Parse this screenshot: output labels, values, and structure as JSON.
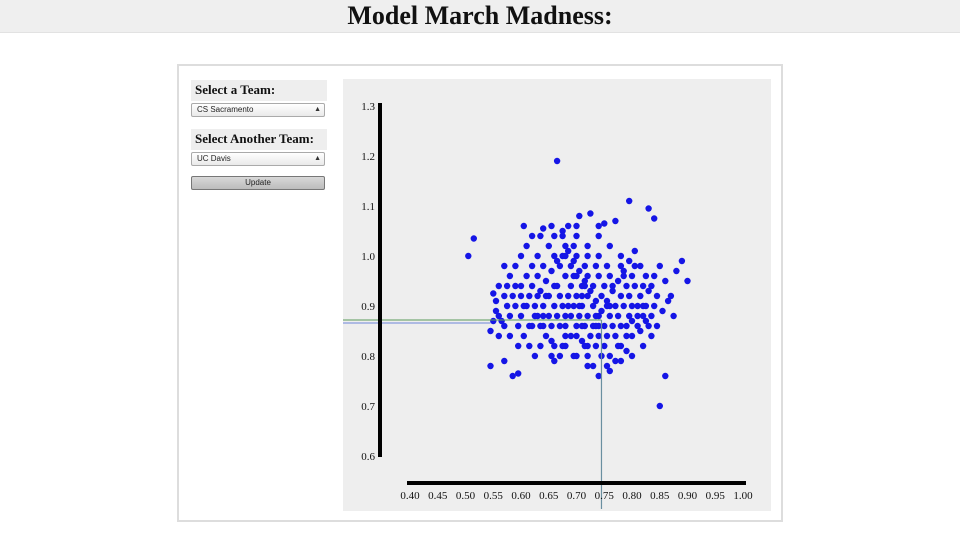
{
  "page": {
    "title": "Model March Madness:"
  },
  "controls": {
    "team1_label": "Select a Team:",
    "team1_value": "CS Sacramento",
    "team2_label": "Select Another Team:",
    "team2_value": "UC Davis",
    "update_label": "Update"
  },
  "colors": {
    "points": "#1515e6",
    "vline": "#6a8fa0",
    "hline_blue": "#6f86d8",
    "hline_green": "#5a9a5a",
    "axis": "#000000"
  },
  "chart_data": {
    "type": "scatter",
    "title": "",
    "xlabel": "",
    "ylabel": "",
    "xlim": [
      0.4,
      1.0
    ],
    "ylim": [
      0.6,
      1.3
    ],
    "x_ticks": [
      "0.40",
      "0.45",
      "0.50",
      "0.55",
      "0.60",
      "0.65",
      "0.70",
      "0.75",
      "0.80",
      "0.85",
      "0.90",
      "0.95",
      "1.00"
    ],
    "y_ticks": [
      "1.3",
      "1.2",
      "1.1",
      "1.0",
      "0.9",
      "0.8",
      "0.7",
      "0.6"
    ],
    "grid": false,
    "reference_lines": {
      "x": 0.745,
      "y_green": 0.872,
      "y_blue": 0.866
    },
    "points": [
      [
        0.665,
        1.19
      ],
      [
        0.505,
        1.0
      ],
      [
        0.515,
        1.035
      ],
      [
        0.55,
        0.925
      ],
      [
        0.555,
        0.91
      ],
      [
        0.56,
        0.88
      ],
      [
        0.565,
        0.87
      ],
      [
        0.545,
        0.78
      ],
      [
        0.57,
        0.79
      ],
      [
        0.585,
        0.76
      ],
      [
        0.595,
        0.765
      ],
      [
        0.63,
        0.88
      ],
      [
        0.64,
        0.86
      ],
      [
        0.655,
        0.83
      ],
      [
        0.66,
        0.79
      ],
      [
        0.67,
        0.8
      ],
      [
        0.68,
        0.82
      ],
      [
        0.69,
        0.84
      ],
      [
        0.7,
        0.86
      ],
      [
        0.71,
        0.83
      ],
      [
        0.72,
        0.8
      ],
      [
        0.73,
        0.78
      ],
      [
        0.74,
        0.76
      ],
      [
        0.76,
        0.77
      ],
      [
        0.77,
        0.79
      ],
      [
        0.78,
        0.82
      ],
      [
        0.79,
        0.84
      ],
      [
        0.8,
        0.87
      ],
      [
        0.81,
        0.88
      ],
      [
        0.82,
        0.9
      ],
      [
        0.83,
        0.93
      ],
      [
        0.84,
        0.96
      ],
      [
        0.85,
        0.98
      ],
      [
        0.86,
        0.95
      ],
      [
        0.87,
        0.92
      ],
      [
        0.88,
        0.97
      ],
      [
        0.89,
        0.99
      ],
      [
        0.9,
        0.95
      ],
      [
        0.86,
        0.76
      ],
      [
        0.85,
        0.7
      ],
      [
        0.795,
        1.11
      ],
      [
        0.83,
        1.095
      ],
      [
        0.84,
        1.075
      ],
      [
        0.77,
        1.07
      ],
      [
        0.75,
        1.065
      ],
      [
        0.725,
        1.085
      ],
      [
        0.705,
        1.08
      ],
      [
        0.685,
        1.06
      ],
      [
        0.675,
        1.05
      ],
      [
        0.64,
        1.055
      ],
      [
        0.62,
        1.04
      ],
      [
        0.61,
        1.02
      ],
      [
        0.6,
        1.0
      ],
      [
        0.59,
        0.98
      ],
      [
        0.58,
        0.96
      ],
      [
        0.575,
        0.94
      ],
      [
        0.6,
        0.94
      ],
      [
        0.615,
        0.92
      ],
      [
        0.625,
        0.9
      ],
      [
        0.635,
        0.93
      ],
      [
        0.645,
        0.95
      ],
      [
        0.655,
        0.97
      ],
      [
        0.665,
        0.99
      ],
      [
        0.675,
        1.0
      ],
      [
        0.685,
        1.01
      ],
      [
        0.695,
        0.99
      ],
      [
        0.705,
        0.97
      ],
      [
        0.715,
        0.95
      ],
      [
        0.725,
        0.93
      ],
      [
        0.735,
        0.91
      ],
      [
        0.745,
        0.89
      ],
      [
        0.755,
        0.91
      ],
      [
        0.765,
        0.93
      ],
      [
        0.775,
        0.95
      ],
      [
        0.785,
        0.97
      ],
      [
        0.795,
        0.99
      ],
      [
        0.805,
        1.01
      ],
      [
        0.815,
        0.98
      ],
      [
        0.825,
        0.96
      ],
      [
        0.835,
        0.94
      ],
      [
        0.845,
        0.92
      ],
      [
        0.82,
        0.88
      ],
      [
        0.81,
        0.86
      ],
      [
        0.8,
        0.84
      ],
      [
        0.79,
        0.81
      ],
      [
        0.78,
        0.79
      ],
      [
        0.76,
        0.8
      ],
      [
        0.75,
        0.82
      ],
      [
        0.74,
        0.84
      ],
      [
        0.73,
        0.86
      ],
      [
        0.72,
        0.88
      ],
      [
        0.71,
        0.9
      ],
      [
        0.7,
        0.92
      ],
      [
        0.69,
        0.94
      ],
      [
        0.68,
        0.96
      ],
      [
        0.67,
        0.98
      ],
      [
        0.66,
        1.0
      ],
      [
        0.65,
        1.02
      ],
      [
        0.63,
        1.0
      ],
      [
        0.62,
        0.98
      ],
      [
        0.61,
        0.96
      ],
      [
        0.6,
        0.92
      ],
      [
        0.59,
        0.9
      ],
      [
        0.58,
        0.88
      ],
      [
        0.57,
        0.86
      ],
      [
        0.575,
        0.9
      ],
      [
        0.585,
        0.92
      ],
      [
        0.595,
        0.86
      ],
      [
        0.605,
        0.84
      ],
      [
        0.615,
        0.82
      ],
      [
        0.625,
        0.8
      ],
      [
        0.635,
        0.82
      ],
      [
        0.645,
        0.84
      ],
      [
        0.655,
        0.86
      ],
      [
        0.665,
        0.88
      ],
      [
        0.675,
        0.9
      ],
      [
        0.685,
        0.92
      ],
      [
        0.695,
        0.9
      ],
      [
        0.705,
        0.88
      ],
      [
        0.715,
        0.86
      ],
      [
        0.725,
        0.84
      ],
      [
        0.735,
        0.82
      ],
      [
        0.745,
        0.8
      ],
      [
        0.755,
        0.78
      ],
      [
        0.765,
        0.86
      ],
      [
        0.775,
        0.88
      ],
      [
        0.785,
        0.9
      ],
      [
        0.795,
        0.92
      ],
      [
        0.805,
        0.94
      ],
      [
        0.815,
        0.92
      ],
      [
        0.825,
        0.9
      ],
      [
        0.835,
        0.88
      ],
      [
        0.845,
        0.86
      ],
      [
        0.8,
        0.96
      ],
      [
        0.79,
        0.94
      ],
      [
        0.78,
        0.92
      ],
      [
        0.77,
        0.9
      ],
      [
        0.76,
        0.88
      ],
      [
        0.75,
        0.86
      ],
      [
        0.74,
        0.88
      ],
      [
        0.73,
        0.9
      ],
      [
        0.72,
        0.92
      ],
      [
        0.71,
        0.94
      ],
      [
        0.7,
        0.96
      ],
      [
        0.69,
        0.98
      ],
      [
        0.68,
        1.0
      ],
      [
        0.67,
        0.92
      ],
      [
        0.66,
        0.9
      ],
      [
        0.65,
        0.88
      ],
      [
        0.64,
        0.9
      ],
      [
        0.63,
        0.92
      ],
      [
        0.62,
        0.94
      ],
      [
        0.64,
        0.98
      ],
      [
        0.66,
        0.94
      ],
      [
        0.68,
        0.88
      ],
      [
        0.7,
        0.84
      ],
      [
        0.72,
        0.82
      ],
      [
        0.74,
        0.86
      ],
      [
        0.76,
        0.9
      ],
      [
        0.78,
        0.86
      ],
      [
        0.8,
        0.9
      ],
      [
        0.82,
        0.94
      ],
      [
        0.84,
        0.9
      ],
      [
        0.7,
        1.0
      ],
      [
        0.72,
        1.02
      ],
      [
        0.74,
        1.0
      ],
      [
        0.76,
        1.02
      ],
      [
        0.78,
        1.0
      ],
      [
        0.74,
        1.04
      ],
      [
        0.7,
        1.04
      ],
      [
        0.66,
        1.04
      ],
      [
        0.68,
        0.84
      ],
      [
        0.66,
        0.82
      ],
      [
        0.7,
        0.8
      ],
      [
        0.72,
        0.78
      ],
      [
        0.68,
        0.86
      ],
      [
        0.64,
        0.88
      ],
      [
        0.62,
        0.86
      ],
      [
        0.6,
        0.88
      ],
      [
        0.58,
        0.84
      ],
      [
        0.56,
        0.84
      ],
      [
        0.555,
        0.89
      ],
      [
        0.545,
        0.85
      ],
      [
        0.56,
        0.94
      ],
      [
        0.57,
        0.98
      ],
      [
        0.76,
        0.96
      ],
      [
        0.78,
        0.98
      ],
      [
        0.74,
        0.96
      ],
      [
        0.72,
        0.96
      ],
      [
        0.75,
        0.94
      ],
      [
        0.73,
        0.94
      ],
      [
        0.71,
        0.92
      ],
      [
        0.77,
        0.84
      ],
      [
        0.79,
        0.86
      ],
      [
        0.81,
        0.9
      ],
      [
        0.83,
        0.86
      ],
      [
        0.82,
        0.82
      ],
      [
        0.8,
        0.8
      ],
      [
        0.815,
        0.85
      ],
      [
        0.825,
        0.87
      ],
      [
        0.835,
        0.84
      ],
      [
        0.855,
        0.89
      ],
      [
        0.865,
        0.91
      ],
      [
        0.875,
        0.88
      ],
      [
        0.67,
        0.86
      ],
      [
        0.69,
        0.88
      ],
      [
        0.71,
        0.86
      ],
      [
        0.65,
        0.92
      ],
      [
        0.63,
        0.96
      ],
      [
        0.61,
        0.9
      ],
      [
        0.59,
        0.94
      ],
      [
        0.57,
        0.92
      ],
      [
        0.55,
        0.87
      ],
      [
        0.595,
        0.82
      ],
      [
        0.615,
        0.86
      ],
      [
        0.635,
        0.86
      ],
      [
        0.655,
        0.8
      ],
      [
        0.675,
        0.82
      ],
      [
        0.695,
        0.8
      ],
      [
        0.715,
        0.82
      ],
      [
        0.735,
        0.88
      ],
      [
        0.755,
        0.84
      ],
      [
        0.775,
        0.82
      ],
      [
        0.795,
        0.88
      ],
      [
        0.755,
        0.98
      ],
      [
        0.735,
        0.98
      ],
      [
        0.715,
        0.98
      ],
      [
        0.695,
        1.02
      ],
      [
        0.675,
        1.04
      ],
      [
        0.655,
        1.06
      ],
      [
        0.635,
        1.04
      ],
      [
        0.605,
        1.06
      ],
      [
        0.74,
        1.06
      ],
      [
        0.7,
        1.06
      ],
      [
        0.68,
        1.02
      ],
      [
        0.72,
        1.0
      ],
      [
        0.695,
        0.96
      ],
      [
        0.715,
        0.94
      ],
      [
        0.745,
        0.92
      ],
      [
        0.765,
        0.94
      ],
      [
        0.785,
        0.96
      ],
      [
        0.805,
        0.98
      ],
      [
        0.755,
        0.9
      ],
      [
        0.735,
        0.86
      ],
      [
        0.705,
        0.9
      ],
      [
        0.685,
        0.9
      ],
      [
        0.665,
        0.94
      ],
      [
        0.645,
        0.92
      ],
      [
        0.625,
        0.88
      ],
      [
        0.605,
        0.9
      ]
    ]
  }
}
